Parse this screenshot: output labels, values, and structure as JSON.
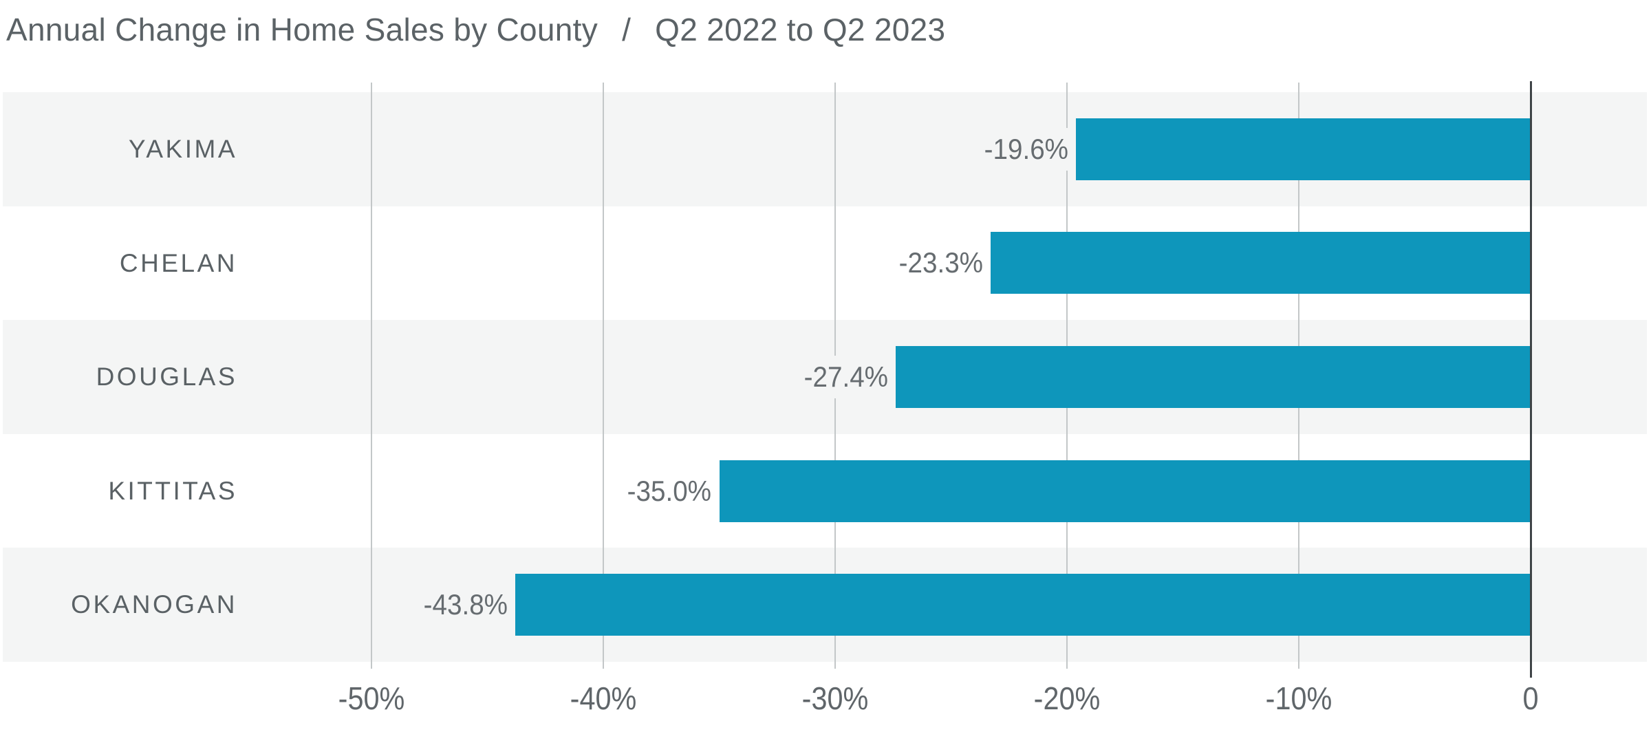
{
  "title": {
    "main": "Annual Change in Home Sales by County",
    "separator": "/",
    "period": "Q2 2022 to Q2 2023"
  },
  "chart_data": {
    "type": "bar",
    "orientation": "horizontal",
    "title": "Annual Change in Home Sales by County / Q2 2022 to Q2 2023",
    "categories": [
      "YAKIMA",
      "CHELAN",
      "DOUGLAS",
      "KITTITAS",
      "OKANOGAN"
    ],
    "values": [
      -19.6,
      -23.3,
      -27.4,
      -35.0,
      -43.8
    ],
    "value_labels": [
      "-19.6%",
      "-23.3%",
      "-27.4%",
      "-35.0%",
      "-43.8%"
    ],
    "xlabel": "",
    "ylabel": "",
    "xlim": [
      -50,
      0
    ],
    "x_ticks": [
      "-50%",
      "-40%",
      "-30%",
      "-20%",
      "-10%",
      "0"
    ],
    "x_tick_values": [
      -50,
      -40,
      -30,
      -20,
      -10,
      0
    ],
    "grid": "vertical-gridlines-only",
    "legend": "none",
    "row_striping": "alternating, first row shaded",
    "colors": {
      "bar": "#0e96bb",
      "band": "#f4f5f5",
      "band_alt": "#ffffff",
      "gridline": "#c3c7c8",
      "zero_line": "#3f4447",
      "title_text": "#5b6266",
      "category_text": "#5a6165",
      "value_text": "#666c70",
      "tick_text": "#60666a"
    }
  }
}
